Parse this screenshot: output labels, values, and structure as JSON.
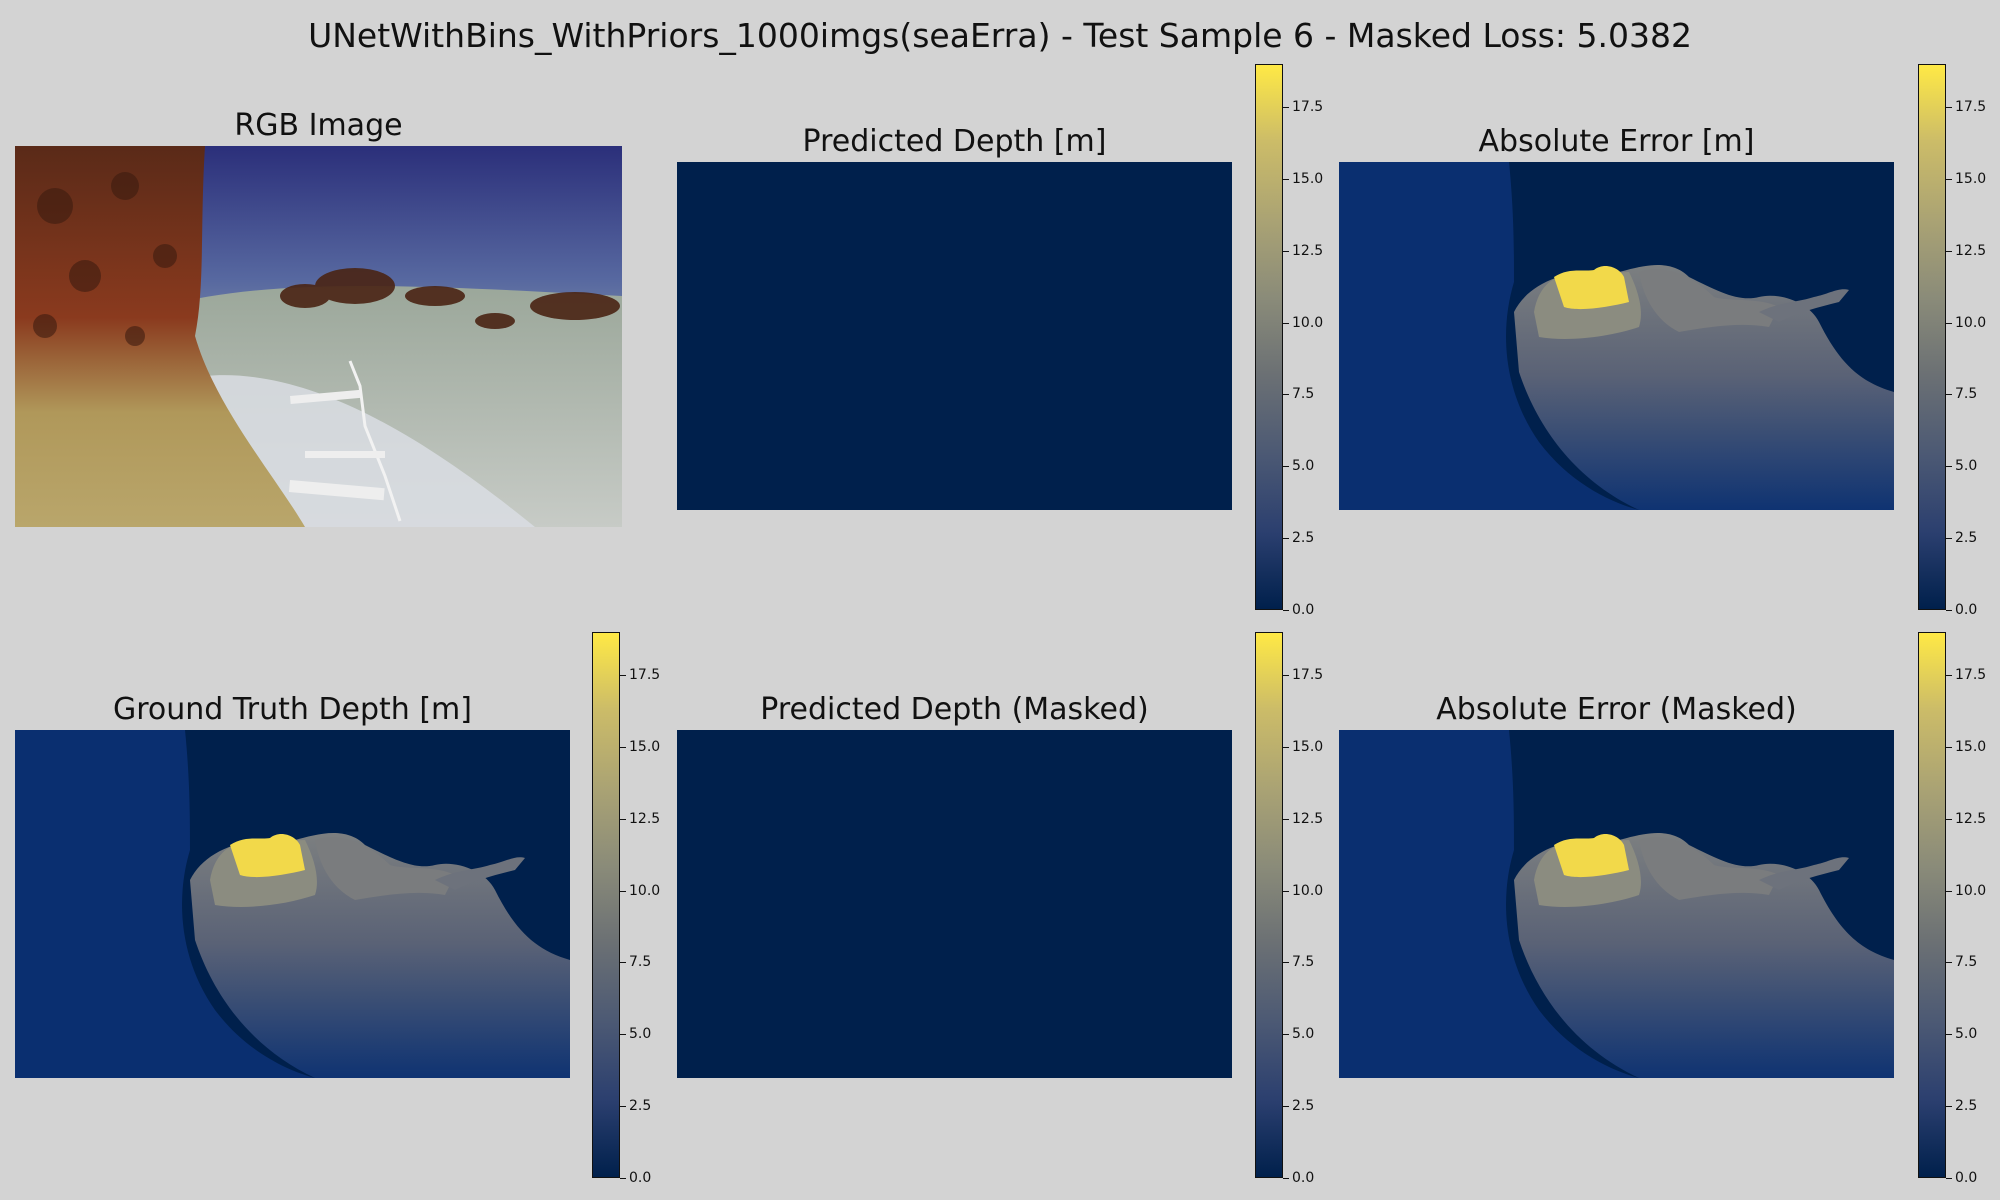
{
  "title": "UNetWithBins_WithPriors_1000imgs(seaErra) - Test Sample 6 - Masked Loss: 5.0382",
  "colormap": {
    "name": "cividis",
    "stops": [
      "#00204c",
      "#2b3f6f",
      "#4d5a74",
      "#6b7074",
      "#8a8b79",
      "#a9a274",
      "#ccbc68",
      "#ffe945"
    ]
  },
  "panels": {
    "rgb": {
      "title": "RGB Image"
    },
    "pred": {
      "title": "Predicted Depth [m]"
    },
    "err": {
      "title": "Absolute Error [m]"
    },
    "gt": {
      "title": "Ground Truth Depth [m]"
    },
    "pred_masked": {
      "title": "Predicted Depth (Masked)"
    },
    "err_masked": {
      "title": "Absolute Error (Masked)"
    }
  },
  "chart_data": {
    "type": "heatmap",
    "colorbar": {
      "vmin": 0,
      "vmax": 19,
      "ticks": [
        0.0,
        2.5,
        5.0,
        7.5,
        10.0,
        12.5,
        15.0,
        17.5
      ],
      "tick_labels": [
        "0.0",
        "2.5",
        "5.0",
        "7.5",
        "10.0",
        "12.5",
        "15.0",
        "17.5"
      ]
    },
    "predicted_depth_value": 0.0
  }
}
